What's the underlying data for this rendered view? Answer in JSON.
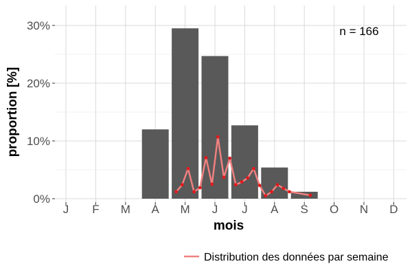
{
  "chart_data": {
    "type": "bar",
    "xlabel": "mois",
    "ylabel": "proportion [%]",
    "ylim": [
      0,
      33
    ],
    "y_ticks": [
      0,
      10,
      20,
      30
    ],
    "y_tick_labels": [
      "0%",
      "10%",
      "20%",
      "30%"
    ],
    "categories": [
      "J",
      "F",
      "M",
      "A",
      "M",
      "J",
      "J",
      "A",
      "S",
      "O",
      "N",
      "D"
    ],
    "values": [
      0,
      0,
      0,
      12.0,
      29.5,
      24.7,
      12.7,
      5.4,
      1.2,
      0,
      0,
      0
    ],
    "grid": true,
    "annotation": "n = 166",
    "line_series": {
      "name": "Distribution des données par semaine",
      "x": [
        3.7,
        3.9,
        4.1,
        4.3,
        4.5,
        4.7,
        4.9,
        5.1,
        5.3,
        5.5,
        5.7,
        5.9,
        6.1,
        6.3,
        6.5,
        6.7,
        6.9,
        7.1,
        7.3,
        7.5,
        8.2
      ],
      "y": [
        1.2,
        2.4,
        5.2,
        1.2,
        1.9,
        7.1,
        2.5,
        10.7,
        3.7,
        7.0,
        2.4,
        2.9,
        3.6,
        5.2,
        2.3,
        0.5,
        1.2,
        2.4,
        1.8,
        1.2,
        0.6
      ]
    },
    "legend_position": "bottom-right",
    "colors": {
      "bar": "#595959",
      "line": "#f08080",
      "point": "#e31a1c",
      "grid": "#d9d9d9"
    }
  }
}
